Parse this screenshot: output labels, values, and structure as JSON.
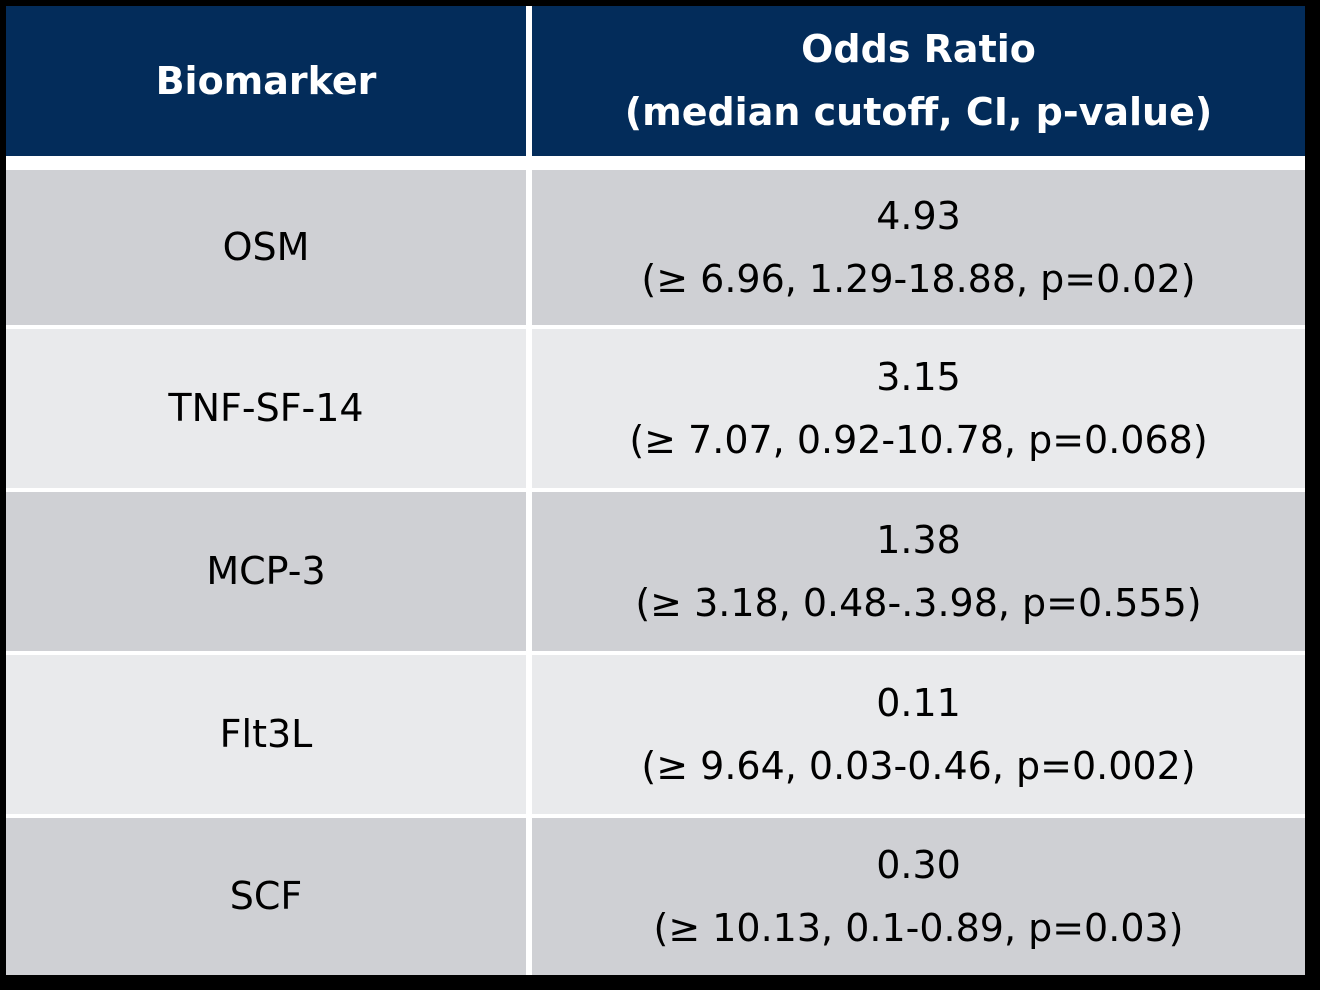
{
  "table": {
    "headers": {
      "biomarker": "Biomarker",
      "odds_ratio_line1": "Odds Ratio",
      "odds_ratio_line2": "(median cutoff, CI, p-value)"
    },
    "rows": [
      {
        "biomarker": "OSM",
        "odds_ratio": "4.93",
        "details": "(≥ 6.96, 1.29-18.88, p=0.02)"
      },
      {
        "biomarker": "TNF-SF-14",
        "odds_ratio": "3.15",
        "details": "(≥ 7.07, 0.92-10.78, p=0.068)"
      },
      {
        "biomarker": "MCP-3",
        "odds_ratio": "1.38",
        "details": "(≥ 3.18, 0.48-.3.98, p=0.555)"
      },
      {
        "biomarker": "Flt3L",
        "odds_ratio": "0.11",
        "details": "(≥ 9.64, 0.03-0.46, p=0.002)"
      },
      {
        "biomarker": "SCF",
        "odds_ratio": "0.30",
        "details": "(≥ 10.13, 0.1-0.89, p=0.03)"
      }
    ]
  },
  "colors": {
    "header_bg": "#032c5a",
    "row_dark": "#cfd0d4",
    "row_light": "#e9eaec",
    "grid": "#ffffff"
  }
}
